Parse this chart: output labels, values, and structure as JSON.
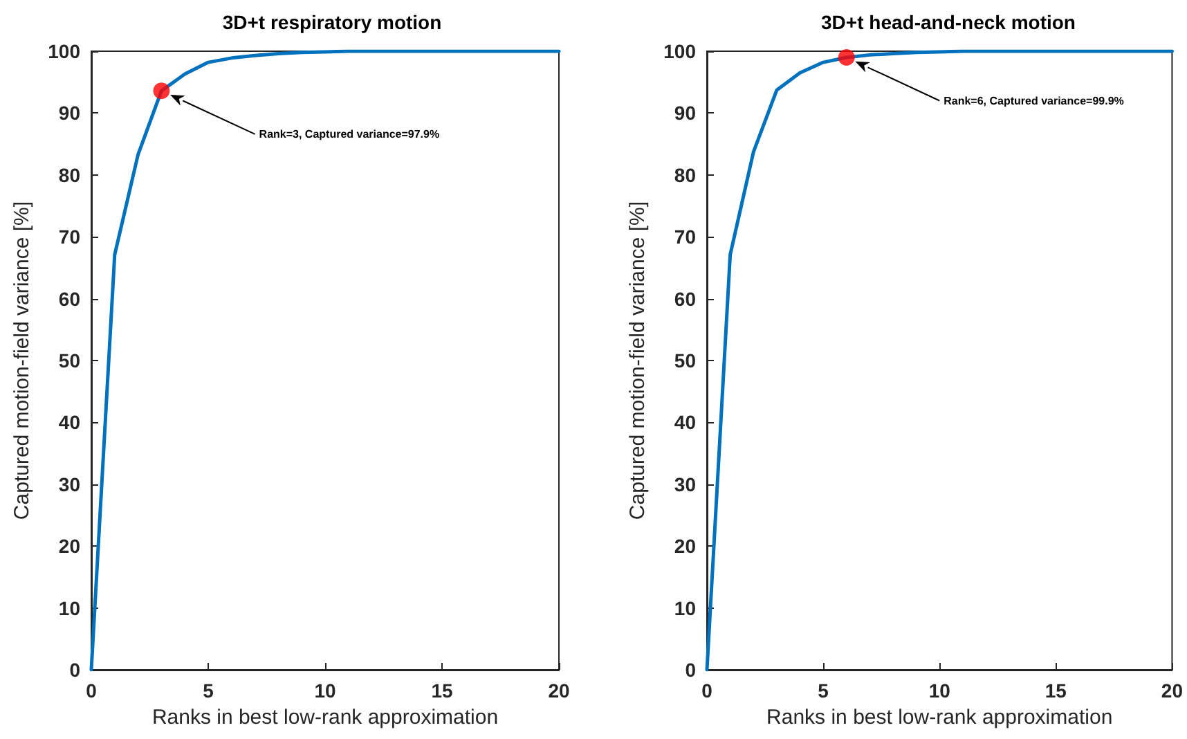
{
  "chart_data": [
    {
      "type": "line",
      "title": "3D+t respiratory motion",
      "xlabel": "Ranks in best low-rank approximation",
      "ylabel": "Captured motion-field variance [%]",
      "x": [
        0,
        1,
        2,
        3,
        4,
        5,
        6,
        7,
        8,
        9,
        10,
        11,
        12,
        13,
        14,
        15,
        16,
        17,
        18,
        19,
        20
      ],
      "series": [
        {
          "color": "#0072bd",
          "marker": "none",
          "values": [
            0,
            67.1,
            83.3,
            93.6,
            96.3,
            98.2,
            98.9,
            99.3,
            99.6,
            99.8,
            99.9,
            100,
            100,
            100,
            100,
            100,
            100,
            100,
            100,
            100,
            100
          ]
        },
        {
          "type": "scatter",
          "color": "#ff0000",
          "marker": "circle",
          "x": [
            3
          ],
          "values": [
            93.6
          ]
        }
      ],
      "annotations": [
        "Rank=3, Captured variance=97.9%"
      ],
      "xlim": [
        0,
        20
      ],
      "ylim": [
        0,
        100
      ],
      "xticks": [
        0,
        5,
        10,
        15,
        20
      ],
      "yticks": [
        0,
        10,
        20,
        30,
        40,
        50,
        60,
        70,
        80,
        90,
        100
      ]
    },
    {
      "type": "line",
      "title": "3D+t head-and-neck motion",
      "xlabel": "Ranks in best low-rank approximation",
      "ylabel": "Captured motion-field variance [%]",
      "x": [
        0,
        1,
        2,
        3,
        4,
        5,
        6,
        7,
        8,
        9,
        10,
        11,
        12,
        13,
        14,
        15,
        16,
        17,
        18,
        19,
        20
      ],
      "series": [
        {
          "color": "#0072bd",
          "marker": "none",
          "values": [
            0,
            67.1,
            83.7,
            93.7,
            96.5,
            98.2,
            99.0,
            99.4,
            99.6,
            99.8,
            99.9,
            100,
            100,
            100,
            100,
            100,
            100,
            100,
            100,
            100,
            100
          ]
        },
        {
          "type": "scatter",
          "color": "#ff0000",
          "marker": "circle",
          "x": [
            6
          ],
          "values": [
            99.0
          ]
        }
      ],
      "annotations": [
        "Rank=6, Captured variance=99.9%"
      ],
      "xlim": [
        0,
        20
      ],
      "ylim": [
        0,
        100
      ],
      "xticks": [
        0,
        5,
        10,
        15,
        20
      ],
      "yticks": [
        0,
        10,
        20,
        30,
        40,
        50,
        60,
        70,
        80,
        90,
        100
      ]
    }
  ]
}
